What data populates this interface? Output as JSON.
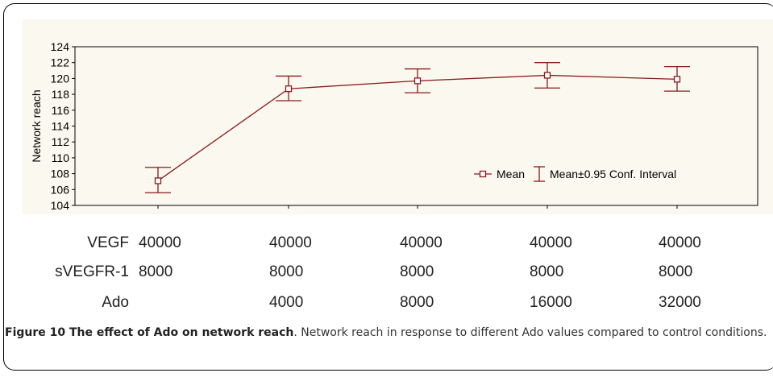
{
  "chart_data": {
    "type": "line",
    "ylabel": "Network reach",
    "ylim": [
      104,
      124
    ],
    "yticks": [
      104,
      106,
      108,
      110,
      112,
      114,
      116,
      118,
      120,
      122,
      124
    ],
    "x": [
      1,
      2,
      3,
      4,
      5
    ],
    "series": [
      {
        "name": "Mean",
        "values": [
          107.1,
          118.7,
          119.7,
          120.4,
          119.9
        ],
        "ci_low": [
          105.6,
          117.2,
          118.2,
          118.8,
          118.4
        ],
        "ci_high": [
          108.8,
          120.3,
          121.2,
          122.0,
          121.5
        ]
      }
    ],
    "legend": {
      "mean_label": "Mean",
      "ci_label": "Mean±0.95 Conf. Interval",
      "placement": "bottom-right"
    },
    "color": "#8b1a1a",
    "background": "#fbf8ef"
  },
  "conditions": {
    "rows": [
      {
        "name": "VEGF",
        "values": [
          "40000",
          "40000",
          "40000",
          "40000",
          "40000"
        ]
      },
      {
        "name": "sVEGFR-1",
        "values": [
          "8000",
          "8000",
          "8000",
          "8000",
          "8000"
        ]
      },
      {
        "name": "Ado",
        "values": [
          "",
          "4000",
          "8000",
          "16000",
          "32000"
        ]
      }
    ]
  },
  "caption": {
    "label": "Figure 10 The effect of Ado on network reach",
    "text": ". Network reach in response to different Ado values compared to control conditions."
  }
}
